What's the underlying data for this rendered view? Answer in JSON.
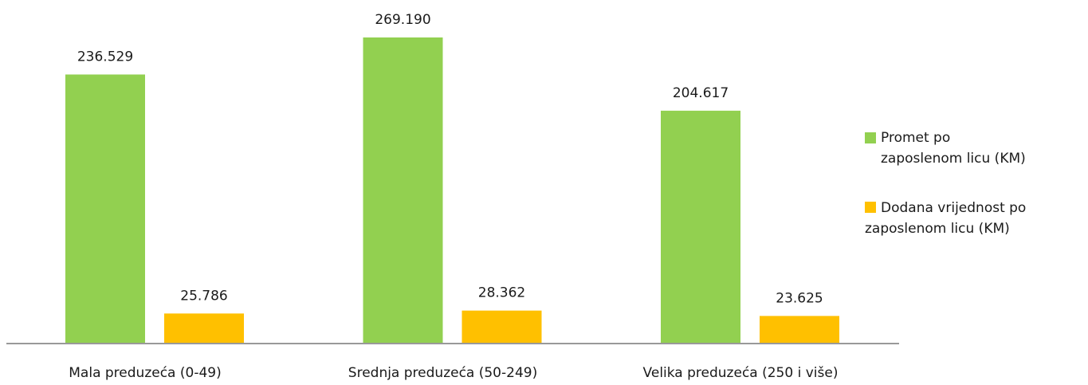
{
  "chart_data": {
    "type": "bar",
    "categories": [
      "Mala preduzeća (0-49)",
      "Srednja preduzeća (50-249)",
      "Velika preduzeća (250 i više)"
    ],
    "series": [
      {
        "name": "Promet po zaposlenom licu (KM)",
        "color": "#92d050",
        "values": [
          236529,
          269190,
          204617
        ],
        "value_labels": [
          "236.529",
          "269.190",
          "204.617"
        ]
      },
      {
        "name": "Dodana vrijednost po zaposlenom licu (KM)",
        "color": "#ffc000",
        "values": [
          25786,
          28362,
          23625
        ],
        "value_labels": [
          "25.786",
          "28.362",
          "23.625"
        ]
      }
    ],
    "legend": "right"
  }
}
